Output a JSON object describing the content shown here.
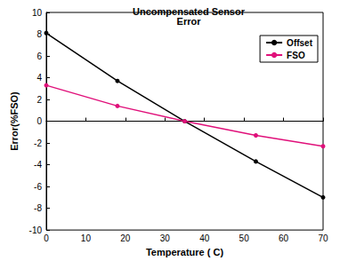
{
  "chart_data": {
    "type": "line",
    "title": "Uncompensated Sensor",
    "subtitle": "Error",
    "x_label": "Temperature ( C)",
    "y_label": "Error(%FSO)",
    "x": [
      0,
      18,
      35,
      53,
      70
    ],
    "series": [
      {
        "name": "Offset",
        "color": "#000000",
        "marker": "circle",
        "values": [
          8.1,
          3.7,
          0,
          -3.7,
          -7.0
        ]
      },
      {
        "name": "FSO",
        "color": "#e0107a",
        "marker": "circle",
        "values": [
          3.3,
          1.4,
          0,
          -1.3,
          -2.3
        ]
      }
    ],
    "xlim": [
      0,
      70
    ],
    "xticks": [
      0,
      10,
      20,
      30,
      40,
      50,
      60,
      70
    ],
    "ylim": [
      -10,
      10
    ],
    "yticks": [
      -10,
      -8,
      -6,
      -4,
      -2,
      0,
      2,
      4,
      6,
      8,
      10
    ],
    "grid": false,
    "legend": "upper right"
  }
}
